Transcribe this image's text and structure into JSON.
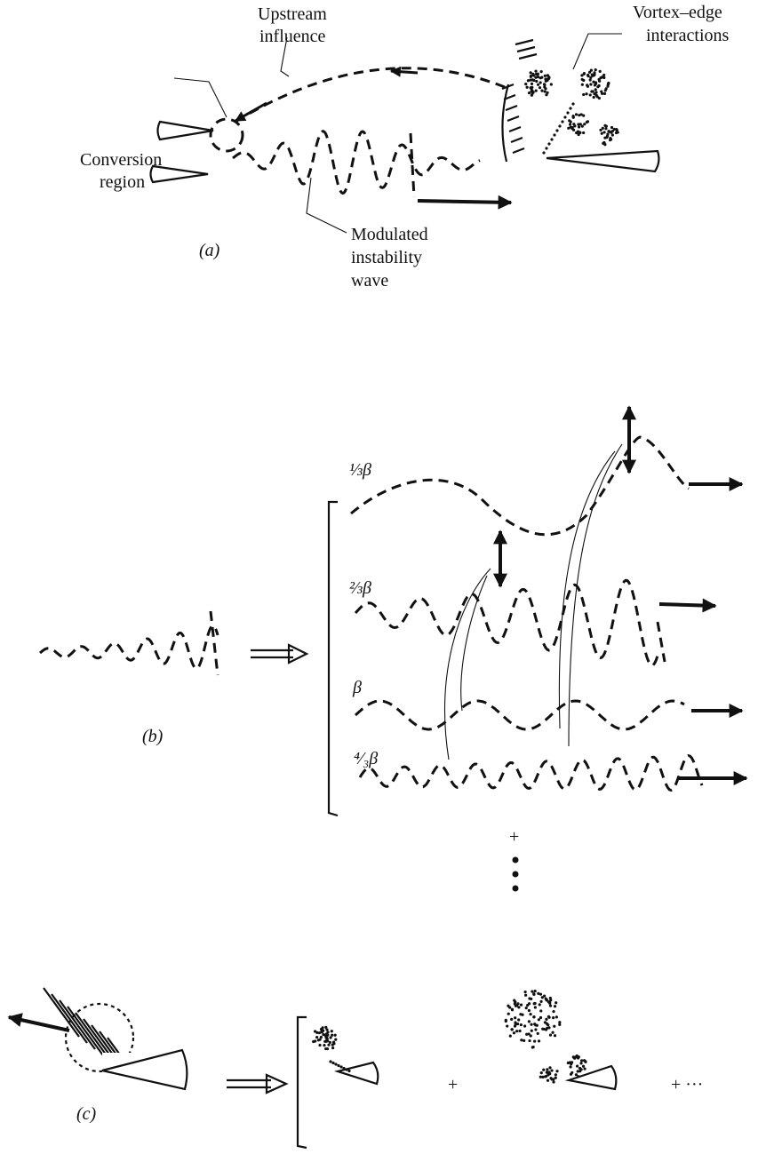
{
  "panel_a": {
    "label": "(a)",
    "conversion_region": [
      "Conversion",
      "region"
    ],
    "upstream_influence": [
      "Upstream",
      "influence"
    ],
    "vortex_edge": [
      "Vortex–edge",
      "interactions"
    ],
    "modulated_wave": [
      "Modulated",
      "instability",
      "wave"
    ]
  },
  "panel_b": {
    "label": "(b)",
    "modes": [
      "⅓β",
      "⅔β",
      "β",
      "⁴⁄₃β"
    ],
    "plus": "+"
  },
  "panel_c": {
    "label": "(c)",
    "operators": [
      "+",
      "+ ···"
    ]
  }
}
